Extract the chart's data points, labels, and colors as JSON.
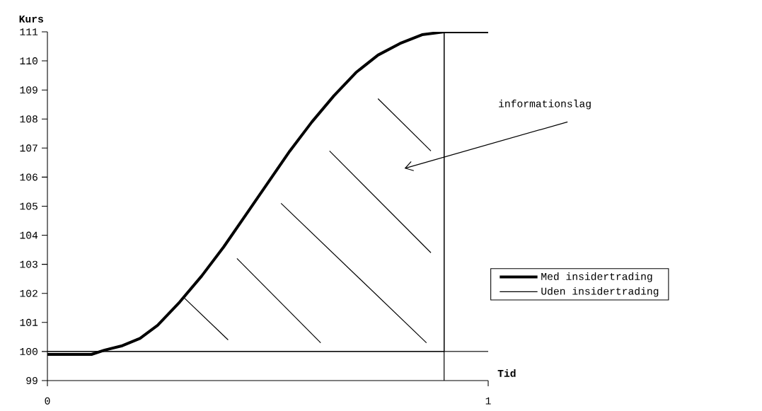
{
  "chart_data": {
    "type": "line",
    "xlabel": "Tid",
    "ylabel": "Kurs",
    "xlim": [
      0,
      1
    ],
    "ylim": [
      99,
      111
    ],
    "xticks": [
      0,
      1
    ],
    "yticks": [
      99,
      100,
      101,
      102,
      103,
      104,
      105,
      106,
      107,
      108,
      109,
      110,
      111
    ],
    "series": [
      {
        "name": "Med insidertrading",
        "color": "#000000",
        "x": [
          0,
          0.1,
          0.13,
          0.17,
          0.21,
          0.25,
          0.3,
          0.35,
          0.4,
          0.45,
          0.5,
          0.55,
          0.6,
          0.65,
          0.7,
          0.75,
          0.8,
          0.85,
          0.9,
          1
        ],
        "values": [
          99.9,
          99.9,
          100.05,
          100.2,
          100.45,
          100.9,
          101.7,
          102.6,
          103.6,
          104.7,
          105.8,
          106.9,
          107.9,
          108.8,
          109.6,
          110.2,
          110.6,
          110.9,
          111,
          111
        ]
      },
      {
        "name": "Uden insidertrading",
        "color": "#000000",
        "x": [
          0,
          0.9,
          0.9
        ],
        "values": [
          100,
          100,
          111
        ]
      }
    ],
    "ref_lines": [
      {
        "axis": "y",
        "value": 100
      },
      {
        "axis": "x",
        "value": 0.9
      }
    ],
    "annotations": [
      "informationslag"
    ],
    "legend": "right",
    "marker": "none",
    "line_style": "solid",
    "grid": false
  }
}
